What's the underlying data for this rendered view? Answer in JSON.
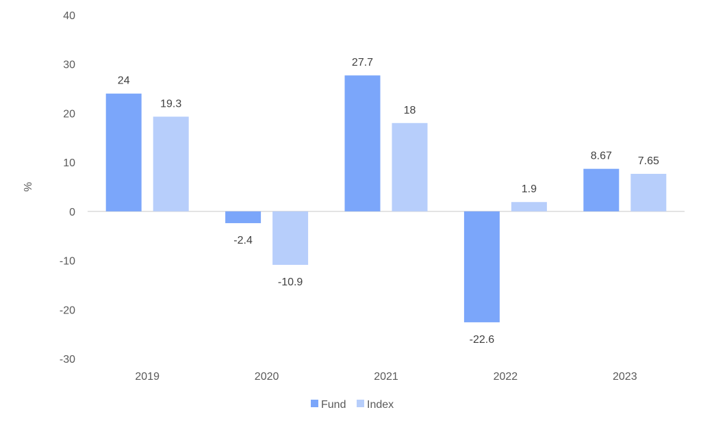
{
  "chart_data": {
    "type": "bar",
    "title": "",
    "xlabel": "",
    "ylabel": "%",
    "categories": [
      "2019",
      "2020",
      "2021",
      "2022",
      "2023"
    ],
    "series": [
      {
        "name": "Fund",
        "values": [
          24,
          -2.4,
          27.7,
          -22.6,
          8.67
        ],
        "color": "#7BA6FA"
      },
      {
        "name": "Index",
        "values": [
          19.3,
          -10.9,
          18,
          1.9,
          7.65
        ],
        "color": "#B7CEFB"
      }
    ],
    "data_labels": [
      [
        "24",
        "-2.4",
        "27.7",
        "-22.6",
        "8.67"
      ],
      [
        "19.3",
        "-10.9",
        "18",
        "1.9",
        "7.65"
      ]
    ],
    "ylim": [
      -30,
      40
    ],
    "yticks": [
      -30,
      -20,
      -10,
      0,
      10,
      20,
      30,
      40
    ],
    "grid": false,
    "legend": "bottom",
    "zero_line_color": "#D9D9D9"
  }
}
